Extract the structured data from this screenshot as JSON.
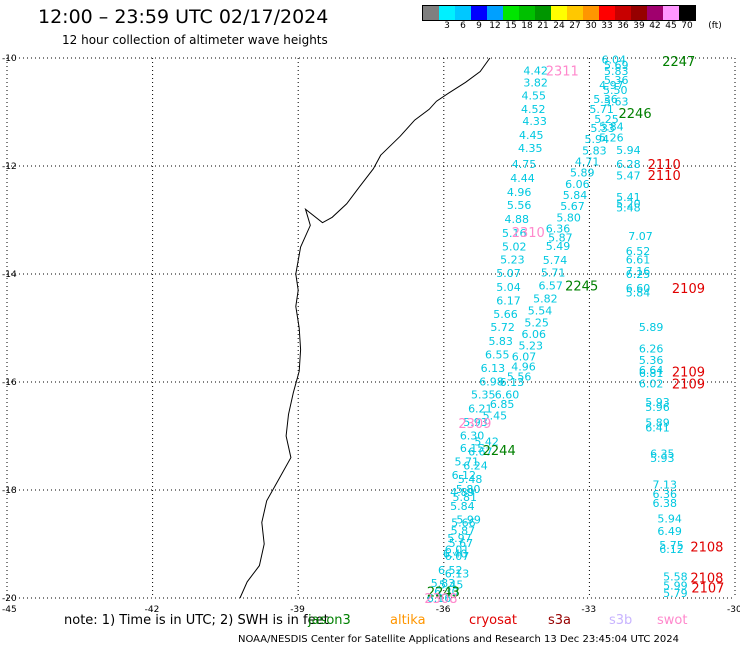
{
  "header": {
    "title": "12:00 – 23:59 UTC 02/17/2024",
    "subtitle": "12 hour collection of altimeter wave heights"
  },
  "legend": {
    "unit": "(ft)",
    "items": [
      {
        "label": "",
        "color": "#7f7f7f"
      },
      {
        "label": "3",
        "color": "#00f0ff"
      },
      {
        "label": "6",
        "color": "#00c8ff"
      },
      {
        "label": "9",
        "color": "#0000ff"
      },
      {
        "label": "12",
        "color": "#00a0ff"
      },
      {
        "label": "15",
        "color": "#00e600"
      },
      {
        "label": "18",
        "color": "#00c000"
      },
      {
        "label": "21",
        "color": "#009600"
      },
      {
        "label": "24",
        "color": "#ffff00"
      },
      {
        "label": "27",
        "color": "#ffc800"
      },
      {
        "label": "30",
        "color": "#ff9600"
      },
      {
        "label": "33",
        "color": "#ff0000"
      },
      {
        "label": "36",
        "color": "#c80000"
      },
      {
        "label": "39",
        "color": "#960000"
      },
      {
        "label": "42",
        "color": "#a0006e"
      },
      {
        "label": "45",
        "color": "#ff96ff"
      },
      {
        "label": "70",
        "color": "#000000"
      }
    ]
  },
  "map": {
    "lat_labels": [
      "-10",
      "-12",
      "-14",
      "-16",
      "-18",
      "-20"
    ],
    "lon_labels": [
      "-45",
      "-42",
      "-39",
      "-36",
      "-33",
      "-30"
    ],
    "colors": {
      "grid": "#000000",
      "coast": "#000000",
      "wave": "#00c8e0",
      "jason": "#008000",
      "cryosat": "#e00000",
      "swot": "#ff88cc"
    },
    "pass_labels": [
      {
        "text": "2247",
        "color": "#008000",
        "lon": -31.5,
        "lat": -10.06
      },
      {
        "text": "2311",
        "color": "#ff88cc",
        "lon": -33.9,
        "lat": -10.23
      },
      {
        "text": "2246",
        "color": "#008000",
        "lon": -32.4,
        "lat": -11.02
      },
      {
        "text": "2110",
        "color": "#e00000",
        "lon": -31.8,
        "lat": -11.96
      },
      {
        "text": "2110",
        "color": "#e00000",
        "lon": -31.8,
        "lat": -12.17
      },
      {
        "text": "2310",
        "color": "#ff88cc",
        "lon": -34.6,
        "lat": -13.22
      },
      {
        "text": "2245",
        "color": "#008000",
        "lon": -33.5,
        "lat": -14.21
      },
      {
        "text": "2109",
        "color": "#e00000",
        "lon": -31.3,
        "lat": -14.26
      },
      {
        "text": "2109",
        "color": "#e00000",
        "lon": -31.3,
        "lat": -15.81
      },
      {
        "text": "2109",
        "color": "#e00000",
        "lon": -31.3,
        "lat": -16.03
      },
      {
        "text": "2309",
        "color": "#ff88cc",
        "lon": -35.7,
        "lat": -16.76
      },
      {
        "text": "2244",
        "color": "#008000",
        "lon": -35.2,
        "lat": -17.26
      },
      {
        "text": "2108",
        "color": "#e00000",
        "lon": -30.92,
        "lat": -19.05
      },
      {
        "text": "2108",
        "color": "#e00000",
        "lon": -30.92,
        "lat": -19.62
      },
      {
        "text": "2107",
        "color": "#e00000",
        "lon": -30.9,
        "lat": -19.81
      },
      {
        "text": "2243",
        "color": "#008000",
        "lon": -36.35,
        "lat": -19.88
      },
      {
        "text": "2308",
        "color": "#ff88cc",
        "lon": -36.4,
        "lat": -20.0
      }
    ],
    "wave_values": [
      {
        "text": "4.42",
        "lon": -34.36,
        "lat": -10.23
      },
      {
        "text": "3.82",
        "lon": -34.36,
        "lat": -10.45
      },
      {
        "text": "4.55",
        "lon": -34.4,
        "lat": -10.69
      },
      {
        "text": "4.52",
        "lon": -34.41,
        "lat": -10.94
      },
      {
        "text": "4.33",
        "lon": -34.38,
        "lat": -11.17
      },
      {
        "text": "4.45",
        "lon": -34.45,
        "lat": -11.43
      },
      {
        "text": "4.35",
        "lon": -34.47,
        "lat": -11.67
      },
      {
        "text": "4.75",
        "lon": -34.6,
        "lat": -11.96
      },
      {
        "text": "4.44",
        "lon": -34.63,
        "lat": -12.22
      },
      {
        "text": "4.96",
        "lon": -34.7,
        "lat": -12.48
      },
      {
        "text": "5.56",
        "lon": -34.7,
        "lat": -12.72
      },
      {
        "text": "4.88",
        "lon": -34.75,
        "lat": -12.98
      },
      {
        "text": "5.16",
        "lon": -34.8,
        "lat": -13.24
      },
      {
        "text": "5.02",
        "lon": -34.8,
        "lat": -13.49
      },
      {
        "text": "5.23",
        "lon": -34.84,
        "lat": -13.73
      },
      {
        "text": "5.07",
        "lon": -34.92,
        "lat": -13.98
      },
      {
        "text": "5.04",
        "lon": -34.92,
        "lat": -14.24
      },
      {
        "text": "6.17",
        "lon": -34.92,
        "lat": -14.49
      },
      {
        "text": "5.66",
        "lon": -34.98,
        "lat": -14.74
      },
      {
        "text": "5.72",
        "lon": -35.04,
        "lat": -14.98
      },
      {
        "text": "5.83",
        "lon": -35.08,
        "lat": -15.24
      },
      {
        "text": "6.55",
        "lon": -35.15,
        "lat": -15.49
      },
      {
        "text": "6.13",
        "lon": -35.24,
        "lat": -15.74
      },
      {
        "text": "6.98",
        "lon": -35.27,
        "lat": -15.99
      },
      {
        "text": "5.35",
        "lon": -35.44,
        "lat": -16.23
      },
      {
        "text": "6.21",
        "lon": -35.5,
        "lat": -16.49
      },
      {
        "text": "5.93",
        "lon": -35.6,
        "lat": -16.74
      },
      {
        "text": "6.30",
        "lon": -35.67,
        "lat": -16.99
      },
      {
        "text": "6.15",
        "lon": -35.67,
        "lat": -17.22
      },
      {
        "text": "5.71",
        "lon": -35.78,
        "lat": -17.47
      },
      {
        "text": "6.12",
        "lon": -35.84,
        "lat": -17.72
      },
      {
        "text": "4.89",
        "lon": -35.87,
        "lat": -18.04
      },
      {
        "text": "5.84",
        "lon": -35.87,
        "lat": -18.3
      },
      {
        "text": "5.99",
        "lon": -35.74,
        "lat": -18.55
      },
      {
        "text": "5.87",
        "lon": -35.86,
        "lat": -18.75
      },
      {
        "text": "5.67",
        "lon": -35.9,
        "lat": -18.98
      },
      {
        "text": "6.40",
        "lon": -36.02,
        "lat": -19.18
      },
      {
        "text": "6.07",
        "lon": -35.98,
        "lat": -19.22
      },
      {
        "text": "6.52",
        "lon": -36.12,
        "lat": -19.48
      },
      {
        "text": "6.13",
        "lon": -35.98,
        "lat": -19.55
      },
      {
        "text": "5.83",
        "lon": -36.27,
        "lat": -19.72
      },
      {
        "text": "6.30",
        "lon": -36.2,
        "lat": -19.88
      },
      {
        "text": "6.16",
        "lon": -36.35,
        "lat": -20.0
      },
      {
        "text": "5.87",
        "lon": -33.85,
        "lat": -13.32
      },
      {
        "text": "6.36",
        "lon": -33.9,
        "lat": -13.16
      },
      {
        "text": "5.49",
        "lon": -33.9,
        "lat": -13.48
      },
      {
        "text": "5.74",
        "lon": -33.96,
        "lat": -13.74
      },
      {
        "text": "5.71",
        "lon": -34.0,
        "lat": -13.97
      },
      {
        "text": "6.57",
        "lon": -34.05,
        "lat": -14.21
      },
      {
        "text": "5.82",
        "lon": -34.16,
        "lat": -14.45
      },
      {
        "text": "5.54",
        "lon": -34.27,
        "lat": -14.68
      },
      {
        "text": "5.25",
        "lon": -34.34,
        "lat": -14.9
      },
      {
        "text": "6.06",
        "lon": -34.4,
        "lat": -15.11
      },
      {
        "text": "5.23",
        "lon": -34.46,
        "lat": -15.32
      },
      {
        "text": "6.07",
        "lon": -34.6,
        "lat": -15.53
      },
      {
        "text": "4.96",
        "lon": -34.61,
        "lat": -15.71
      },
      {
        "text": "5.56",
        "lon": -34.7,
        "lat": -15.9
      },
      {
        "text": "6.13",
        "lon": -34.85,
        "lat": -16.0
      },
      {
        "text": "6.60",
        "lon": -34.95,
        "lat": -16.23
      },
      {
        "text": "6.85",
        "lon": -35.05,
        "lat": -16.41
      },
      {
        "text": "5.45",
        "lon": -35.2,
        "lat": -16.62
      },
      {
        "text": "5.42",
        "lon": -35.37,
        "lat": -17.1
      },
      {
        "text": "6.67",
        "lon": -35.5,
        "lat": -17.29
      },
      {
        "text": "6.24",
        "lon": -35.6,
        "lat": -17.55
      },
      {
        "text": "5.48",
        "lon": -35.71,
        "lat": -17.8
      },
      {
        "text": "5.80",
        "lon": -35.75,
        "lat": -17.98
      },
      {
        "text": "5.81",
        "lon": -35.82,
        "lat": -18.13
      },
      {
        "text": "5.66",
        "lon": -35.85,
        "lat": -18.6
      },
      {
        "text": "5.97",
        "lon": -35.93,
        "lat": -18.89
      },
      {
        "text": "6.01",
        "lon": -35.98,
        "lat": -19.1
      },
      {
        "text": "5.45",
        "lon": -36.1,
        "lat": -19.75
      },
      {
        "text": "6.04",
        "lon": -32.75,
        "lat": -10.03
      },
      {
        "text": "5.69",
        "lon": -32.7,
        "lat": -10.13
      },
      {
        "text": "5.83",
        "lon": -32.7,
        "lat": -10.24
      },
      {
        "text": "5.36",
        "lon": -32.7,
        "lat": -10.41
      },
      {
        "text": "4.97",
        "lon": -32.8,
        "lat": -10.5
      },
      {
        "text": "5.50",
        "lon": -32.72,
        "lat": -10.59
      },
      {
        "text": "5.36",
        "lon": -32.92,
        "lat": -10.76
      },
      {
        "text": "5.63",
        "lon": -32.7,
        "lat": -10.81
      },
      {
        "text": "5.71",
        "lon": -33.0,
        "lat": -10.94
      },
      {
        "text": "5.25",
        "lon": -32.9,
        "lat": -11.13
      },
      {
        "text": "5.33",
        "lon": -32.98,
        "lat": -11.3
      },
      {
        "text": "5.84",
        "lon": -32.8,
        "lat": -11.27
      },
      {
        "text": "5.94",
        "lon": -33.1,
        "lat": -11.5
      },
      {
        "text": "5.26",
        "lon": -32.8,
        "lat": -11.47
      },
      {
        "text": "5.83",
        "lon": -33.15,
        "lat": -11.71
      },
      {
        "text": "4.71",
        "lon": -33.3,
        "lat": -11.92
      },
      {
        "text": "5.89",
        "lon": -33.4,
        "lat": -12.12
      },
      {
        "text": "6.06",
        "lon": -33.5,
        "lat": -12.33
      },
      {
        "text": "5.84",
        "lon": -33.55,
        "lat": -12.54
      },
      {
        "text": "5.67",
        "lon": -33.6,
        "lat": -12.74
      },
      {
        "text": "5.80",
        "lon": -33.68,
        "lat": -12.95
      },
      {
        "text": "5.94",
        "lon": -32.45,
        "lat": -11.7
      },
      {
        "text": "6.28",
        "lon": -32.45,
        "lat": -11.96
      },
      {
        "text": "5.47",
        "lon": -32.45,
        "lat": -12.18
      },
      {
        "text": "5.41",
        "lon": -32.45,
        "lat": -12.57
      },
      {
        "text": "5.20",
        "lon": -32.45,
        "lat": -12.69
      },
      {
        "text": "5.48",
        "lon": -32.45,
        "lat": -12.77
      },
      {
        "text": "7.07",
        "lon": -32.2,
        "lat": -13.3
      },
      {
        "text": "6.52",
        "lon": -32.25,
        "lat": -13.57
      },
      {
        "text": "6.61",
        "lon": -32.25,
        "lat": -13.73
      },
      {
        "text": "7.16",
        "lon": -32.25,
        "lat": -13.94
      },
      {
        "text": "6.25",
        "lon": -32.25,
        "lat": -14.0
      },
      {
        "text": "6.60",
        "lon": -32.25,
        "lat": -14.26
      },
      {
        "text": "5.84",
        "lon": -32.25,
        "lat": -14.34
      },
      {
        "text": "5.89",
        "lon": -31.98,
        "lat": -14.98
      },
      {
        "text": "6.26",
        "lon": -31.98,
        "lat": -15.38
      },
      {
        "text": "5.36",
        "lon": -31.98,
        "lat": -15.59
      },
      {
        "text": "6.64",
        "lon": -31.98,
        "lat": -15.78
      },
      {
        "text": "6.81",
        "lon": -31.98,
        "lat": -15.83
      },
      {
        "text": "6.02",
        "lon": -31.98,
        "lat": -16.03
      },
      {
        "text": "5.93",
        "lon": -31.85,
        "lat": -16.37
      },
      {
        "text": "5.96",
        "lon": -31.85,
        "lat": -16.46
      },
      {
        "text": "5.89",
        "lon": -31.85,
        "lat": -16.75
      },
      {
        "text": "6.41",
        "lon": -31.85,
        "lat": -16.84
      },
      {
        "text": "6.35",
        "lon": -31.75,
        "lat": -17.32
      },
      {
        "text": "5.93",
        "lon": -31.75,
        "lat": -17.41
      },
      {
        "text": "7.13",
        "lon": -31.7,
        "lat": -17.9
      },
      {
        "text": "6.36",
        "lon": -31.7,
        "lat": -18.07
      },
      {
        "text": "6.38",
        "lon": -31.7,
        "lat": -18.24
      },
      {
        "text": "5.94",
        "lon": -31.6,
        "lat": -18.53
      },
      {
        "text": "6.49",
        "lon": -31.6,
        "lat": -18.76
      },
      {
        "text": "5.75",
        "lon": -31.56,
        "lat": -19.02
      },
      {
        "text": "6.12",
        "lon": -31.56,
        "lat": -19.09
      },
      {
        "text": "5.58",
        "lon": -31.48,
        "lat": -19.6
      },
      {
        "text": "5.99",
        "lon": -31.48,
        "lat": -19.77
      },
      {
        "text": "5.79",
        "lon": -31.48,
        "lat": -19.91
      }
    ]
  },
  "note": {
    "text": "note:  1) Time is in UTC; 2) SWH is in feet",
    "satellites": [
      {
        "name": "jason3",
        "color": "#008000"
      },
      {
        "name": "altika",
        "color": "#ff9600"
      },
      {
        "name": "cryosat",
        "color": "#e00000"
      },
      {
        "name": "s3a",
        "color": "#960000"
      },
      {
        "name": "s3b",
        "color": "#c8b4ff"
      },
      {
        "name": "swot",
        "color": "#ff88cc"
      }
    ]
  },
  "footer": {
    "text": "NOAA/NESDIS Center for Satellite Applications and Research   13 Dec 23:45:04 UTC 2024"
  }
}
